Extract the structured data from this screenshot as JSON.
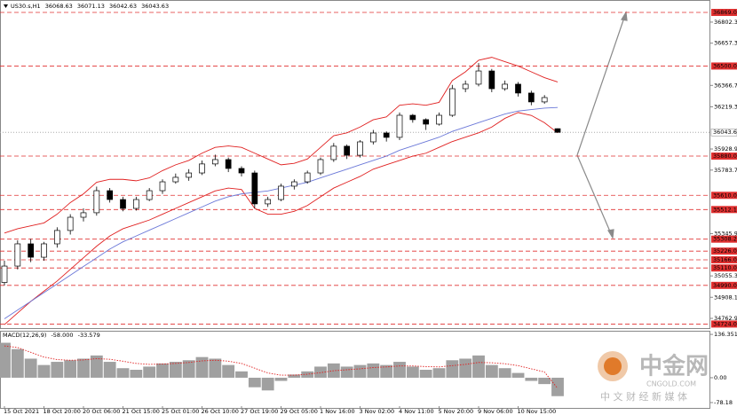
{
  "header": {
    "symbol": "US30.s,H1",
    "open": "36068.63",
    "high": "36071.13",
    "low": "36042.63",
    "close": "36043.63"
  },
  "macd_header": {
    "name": "MACD(12,26,9)",
    "main": "-58.000",
    "signal": "-33.579"
  },
  "watermark": {
    "title": "中金网",
    "site": "CNGOLD.COM",
    "tagline": "中 文 财 经 新 媒 体"
  },
  "chart_data": [
    {
      "type": "candlestick",
      "categories": [
        "15 Oct 2021",
        null,
        null,
        "18 Oct 20:00",
        null,
        null,
        "20 Oct 06:00",
        null,
        null,
        "21 Oct 15:00",
        null,
        null,
        "25 Oct 01:00",
        null,
        null,
        "26 Oct 10:00",
        null,
        null,
        "27 Oct 19:00",
        null,
        null,
        "29 Oct 05:00",
        null,
        null,
        "1 Nov 16:00",
        null,
        null,
        "3 Nov 02:00",
        null,
        null,
        "4 Nov 11:00",
        null,
        null,
        "5 Nov 20:00",
        null,
        null,
        "9 Nov 06:00",
        null,
        null,
        "10 Nov 15:00",
        null,
        null,
        null
      ],
      "ohlc": [
        [
          35010,
          35160,
          34990,
          35123
        ],
        [
          35123,
          35300,
          35100,
          35276
        ],
        [
          35276,
          35310,
          35150,
          35184
        ],
        [
          35184,
          35290,
          35160,
          35276
        ],
        [
          35276,
          35390,
          35250,
          35368
        ],
        [
          35368,
          35480,
          35340,
          35459
        ],
        [
          35459,
          35520,
          35430,
          35490
        ],
        [
          35490,
          35670,
          35470,
          35642
        ],
        [
          35642,
          35660,
          35560,
          35581
        ],
        [
          35581,
          35600,
          35500,
          35520
        ],
        [
          35520,
          35600,
          35505,
          35581
        ],
        [
          35581,
          35660,
          35570,
          35642
        ],
        [
          35642,
          35720,
          35620,
          35703
        ],
        [
          35703,
          35760,
          35690,
          35734
        ],
        [
          35734,
          35790,
          35710,
          35764
        ],
        [
          35764,
          35850,
          35750,
          35826
        ],
        [
          35826,
          35890,
          35810,
          35856
        ],
        [
          35856,
          35870,
          35770,
          35795
        ],
        [
          35795,
          35810,
          35740,
          35764
        ],
        [
          35764,
          35780,
          35520,
          35551
        ],
        [
          35551,
          35600,
          35530,
          35581
        ],
        [
          35581,
          35690,
          35570,
          35673
        ],
        [
          35673,
          35720,
          35650,
          35703
        ],
        [
          35703,
          35780,
          35690,
          35764
        ],
        [
          35764,
          35870,
          35750,
          35856
        ],
        [
          35856,
          35970,
          35840,
          35948
        ],
        [
          35948,
          35960,
          35860,
          35886
        ],
        [
          35886,
          35990,
          35870,
          35978
        ],
        [
          35978,
          36060,
          35960,
          36039
        ],
        [
          36039,
          36050,
          35980,
          36009
        ],
        [
          36009,
          36180,
          35990,
          36161
        ],
        [
          36161,
          36170,
          36110,
          36131
        ],
        [
          36131,
          36140,
          36060,
          36100
        ],
        [
          36100,
          36180,
          36090,
          36161
        ],
        [
          36161,
          36370,
          36150,
          36344
        ],
        [
          36344,
          36400,
          36320,
          36375
        ],
        [
          36375,
          36520,
          36360,
          36466
        ],
        [
          36466,
          36480,
          36320,
          36344
        ],
        [
          36344,
          36400,
          36330,
          36375
        ],
        [
          36375,
          36390,
          36290,
          36314
        ],
        [
          36314,
          36330,
          36230,
          36253
        ],
        [
          36253,
          36300,
          36240,
          36283
        ],
        [
          36068.63,
          36071.13,
          36042.63,
          36043.63
        ]
      ],
      "candle_color": "#000000",
      "series": [
        {
          "color": "#e02020",
          "values": [
            35350,
            35380,
            35400,
            35420,
            35480,
            35560,
            35620,
            35700,
            35720,
            35720,
            35710,
            35730,
            35780,
            35820,
            35850,
            35900,
            35940,
            35950,
            35940,
            35900,
            35860,
            35820,
            35830,
            35860,
            35940,
            36020,
            36040,
            36080,
            36130,
            36150,
            36230,
            36240,
            36230,
            36250,
            36400,
            36460,
            36540,
            36560,
            36530,
            36500,
            36460,
            36420,
            36390
          ]
        },
        {
          "color": "#e02020",
          "values": [
            34720,
            34800,
            34880,
            34950,
            35020,
            35100,
            35180,
            35260,
            35330,
            35380,
            35410,
            35440,
            35480,
            35520,
            35560,
            35600,
            35640,
            35660,
            35650,
            35520,
            35480,
            35480,
            35500,
            35540,
            35600,
            35660,
            35700,
            35740,
            35790,
            35820,
            35850,
            35880,
            35900,
            35940,
            35980,
            36010,
            36040,
            36080,
            36140,
            36180,
            36160,
            36110,
            36040
          ]
        },
        {
          "color": "#6b78d8",
          "values": [
            34760,
            34820,
            34880,
            34940,
            35000,
            35060,
            35120,
            35180,
            35240,
            35290,
            35330,
            35370,
            35410,
            35450,
            35490,
            35530,
            35570,
            35600,
            35620,
            35630,
            35640,
            35660,
            35680,
            35700,
            35730,
            35760,
            35790,
            35820,
            35850,
            35880,
            35920,
            35950,
            35980,
            36010,
            36050,
            36080,
            36110,
            36140,
            36170,
            36190,
            36200,
            36210,
            36215
          ]
        }
      ],
      "ylim": [
        34696,
        36924
      ],
      "yticks": [
        {
          "value": 36802.32,
          "label": "36802.32"
        },
        {
          "value": 36657.3,
          "label": "36657.30"
        },
        {
          "value": 36366.7,
          "label": "36366.70"
        },
        {
          "value": 36219.3,
          "label": "36219.30"
        },
        {
          "value": 35928.9,
          "label": "35928.90"
        },
        {
          "value": 35783.7,
          "label": "35783.70"
        },
        {
          "value": 35345.9,
          "label": "35345.90"
        },
        {
          "value": 35055.3,
          "label": "35055.30"
        },
        {
          "value": 34908.1,
          "label": "34908.10"
        },
        {
          "value": 34762.9,
          "label": "34762.90"
        }
      ],
      "levels": [
        {
          "value": 36869,
          "label": "36869.00"
        },
        {
          "value": 36500,
          "label": "36500.00"
        },
        {
          "value": 35880,
          "label": "35880.00"
        },
        {
          "value": 35610,
          "label": "35610.00"
        },
        {
          "value": 35512.17,
          "label": "35512.17"
        },
        {
          "value": 35308.23,
          "label": "35308.23"
        },
        {
          "value": 35226,
          "label": "35226.00"
        },
        {
          "value": 35166,
          "label": "35166.00"
        },
        {
          "value": 35110,
          "label": "35110.00"
        },
        {
          "value": 34990,
          "label": "34990.00"
        },
        {
          "value": 34724,
          "label": "34724.00"
        }
      ],
      "level_color": "#e03030",
      "last_price": {
        "value": 36043.63,
        "label": "36043.63"
      }
    },
    {
      "type": "macd",
      "histogram": [
        110,
        90,
        60,
        40,
        50,
        55,
        60,
        70,
        50,
        30,
        25,
        35,
        45,
        50,
        55,
        65,
        60,
        40,
        20,
        -30,
        -40,
        -10,
        10,
        20,
        35,
        45,
        35,
        40,
        45,
        40,
        50,
        35,
        25,
        30,
        55,
        60,
        70,
        40,
        30,
        15,
        -10,
        -20,
        -58
      ],
      "histogram_color": "#a0a0a0",
      "signal": [
        100,
        95,
        80,
        65,
        57,
        55,
        56,
        60,
        58,
        52,
        45,
        42,
        43,
        45,
        48,
        53,
        55,
        52,
        45,
        30,
        15,
        8,
        8,
        11,
        16,
        22,
        25,
        28,
        32,
        34,
        37,
        37,
        35,
        34,
        38,
        42,
        48,
        47,
        44,
        38,
        28,
        18,
        -33.579
      ],
      "signal_color": "#e02020",
      "ylim": [
        -95,
        145
      ],
      "yticks": [
        {
          "value": 136.351,
          "label": "136.351"
        },
        {
          "value": 0,
          "label": "0.00"
        },
        {
          "value": -78.18,
          "label": "-78.18"
        }
      ]
    }
  ]
}
